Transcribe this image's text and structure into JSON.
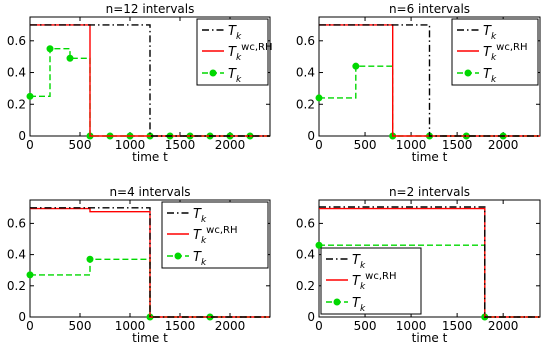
{
  "chart_data": [
    {
      "type": "line",
      "title": "n=12 intervals",
      "xlabel": "time t",
      "ylabel": "",
      "xlim": [
        0,
        2400
      ],
      "ylim": [
        0,
        0.75
      ],
      "xticks": [
        0,
        500,
        1000,
        1500,
        2000
      ],
      "yticks": [
        0,
        0.2,
        0.4,
        0.6
      ],
      "legend_position": "top-right",
      "series": [
        {
          "name": "T_k",
          "name_sub": "k",
          "name_sup": "",
          "style": "dashdot",
          "color": "#000000",
          "x": [
            0,
            1200,
            1200,
            2400
          ],
          "y": [
            0.7,
            0.7,
            0,
            0
          ]
        },
        {
          "name": "T_k^wc,RH",
          "name_sub": "k",
          "name_sup": "wc,RH",
          "style": "solid",
          "color": "#ff0000",
          "x": [
            0,
            600,
            600,
            2400
          ],
          "y": [
            0.7,
            0.7,
            0,
            0
          ]
        },
        {
          "name": "T_k",
          "name_sub": "k",
          "name_sup": "",
          "style": "dashed",
          "color": "#00d800",
          "markers": true,
          "x": [
            0,
            200,
            200,
            400,
            400,
            600,
            600,
            2400
          ],
          "y": [
            0.25,
            0.25,
            0.55,
            0.55,
            0.49,
            0.49,
            0,
            0
          ],
          "marker_x": [
            0,
            200,
            400,
            600,
            800,
            1000,
            1200,
            1400,
            1600,
            1800,
            2000,
            2200
          ],
          "marker_y": [
            0.25,
            0.55,
            0.49,
            0,
            0,
            0,
            0,
            0,
            0,
            0,
            0,
            0
          ]
        }
      ]
    },
    {
      "type": "line",
      "title": "n=6 intervals",
      "xlabel": "time t",
      "ylabel": "",
      "xlim": [
        0,
        2400
      ],
      "ylim": [
        0,
        0.75
      ],
      "xticks": [
        0,
        500,
        1000,
        1500,
        2000
      ],
      "yticks": [
        0,
        0.2,
        0.4,
        0.6
      ],
      "legend_position": "top-right",
      "series": [
        {
          "name": "T_k",
          "name_sub": "k",
          "name_sup": "",
          "style": "dashdot",
          "color": "#000000",
          "x": [
            0,
            1200,
            1200,
            2400
          ],
          "y": [
            0.7,
            0.7,
            0,
            0
          ]
        },
        {
          "name": "T_k^wc,RH",
          "name_sub": "k",
          "name_sup": "wc,RH",
          "style": "solid",
          "color": "#ff0000",
          "x": [
            0,
            800,
            800,
            2400
          ],
          "y": [
            0.7,
            0.7,
            0,
            0
          ]
        },
        {
          "name": "T_k",
          "name_sub": "k",
          "name_sup": "",
          "style": "dashed",
          "color": "#00d800",
          "markers": true,
          "x": [
            0,
            400,
            400,
            800,
            800,
            2400
          ],
          "y": [
            0.24,
            0.24,
            0.44,
            0.44,
            0,
            0
          ],
          "marker_x": [
            0,
            400,
            800,
            1200,
            1600,
            2000
          ],
          "marker_y": [
            0.24,
            0.44,
            0,
            0,
            0,
            0
          ]
        }
      ]
    },
    {
      "type": "line",
      "title": "n=4 intervals",
      "xlabel": "time t",
      "ylabel": "",
      "xlim": [
        0,
        2400
      ],
      "ylim": [
        0,
        0.75
      ],
      "xticks": [
        0,
        500,
        1000,
        1500,
        2000
      ],
      "yticks": [
        0,
        0.2,
        0.4,
        0.6
      ],
      "legend_position": "top-right",
      "series": [
        {
          "name": "T_k",
          "name_sub": "k",
          "name_sup": "",
          "style": "dashdot",
          "color": "#000000",
          "x": [
            0,
            1200,
            1200,
            2400
          ],
          "y": [
            0.7,
            0.7,
            0,
            0
          ]
        },
        {
          "name": "T_k^wc,RH",
          "name_sub": "k",
          "name_sup": "wc,RH",
          "style": "solid",
          "color": "#ff0000",
          "x": [
            0,
            600,
            600,
            1200,
            1200,
            2400
          ],
          "y": [
            0.695,
            0.695,
            0.675,
            0.675,
            0,
            0
          ]
        },
        {
          "name": "T_k",
          "name_sub": "k",
          "name_sup": "",
          "style": "dashed",
          "color": "#00d800",
          "markers": true,
          "x": [
            0,
            600,
            600,
            1200,
            1200,
            2400
          ],
          "y": [
            0.27,
            0.27,
            0.37,
            0.37,
            0,
            0
          ],
          "marker_x": [
            0,
            600,
            1200,
            1800
          ],
          "marker_y": [
            0.27,
            0.37,
            0,
            0
          ]
        }
      ]
    },
    {
      "type": "line",
      "title": "n=2 intervals",
      "xlabel": "time t",
      "ylabel": "",
      "xlim": [
        0,
        2400
      ],
      "ylim": [
        0,
        0.75
      ],
      "xticks": [
        0,
        500,
        1000,
        1500,
        2000
      ],
      "yticks": [
        0,
        0.2,
        0.4,
        0.6
      ],
      "legend_position": "bottom-left",
      "series": [
        {
          "name": "T_k",
          "name_sub": "k",
          "name_sup": "",
          "style": "dashdot",
          "color": "#000000",
          "x": [
            0,
            1800,
            1800,
            2400
          ],
          "y": [
            0.705,
            0.705,
            0,
            0
          ]
        },
        {
          "name": "T_k^wc,RH",
          "name_sub": "k",
          "name_sup": "wc,RH",
          "style": "solid",
          "color": "#ff0000",
          "x": [
            0,
            1800,
            1800,
            2400
          ],
          "y": [
            0.695,
            0.695,
            0,
            0
          ]
        },
        {
          "name": "T_k",
          "name_sub": "k",
          "name_sup": "",
          "style": "dashed",
          "color": "#00d800",
          "markers": true,
          "x": [
            0,
            1800,
            1800,
            2400
          ],
          "y": [
            0.46,
            0.46,
            0,
            0
          ],
          "marker_x": [
            0,
            1800
          ],
          "marker_y": [
            0.46,
            0
          ]
        }
      ]
    }
  ]
}
